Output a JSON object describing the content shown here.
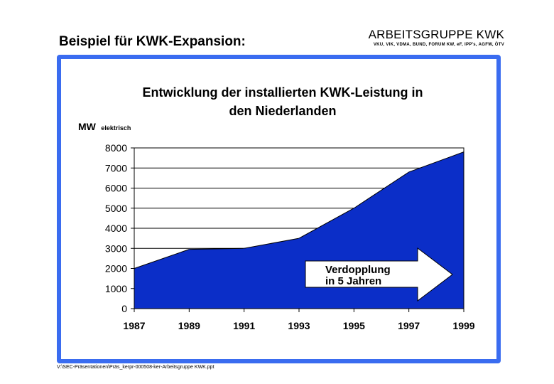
{
  "header": {
    "title": "Beispiel für KWK-Expansion:",
    "org_name": "ARBEITSGRUPPE KWK",
    "org_members": "VKU, VIK, VDMA, BUND, FORUM KW, eF, IPP's, AGFW, ÖTV"
  },
  "footer": {
    "file_path": "V:\\SEC-Präsentationen\\Präs_kerpr-000508-ker-Arbeitsgruppe KWK.ppt"
  },
  "chart_data": {
    "type": "area",
    "title": "Entwicklung der installierten KWK-Leistung in den Niederlanden",
    "title_lines": [
      "Entwicklung der installierten KWK-Leistung in",
      "den Niederlanden"
    ],
    "ylabel_main": "MW",
    "ylabel_sub": "elektrisch",
    "x": [
      1987,
      1989,
      1991,
      1993,
      1995,
      1997,
      1999
    ],
    "x_tick_labels": [
      "1987",
      "1989",
      "1991",
      "1993",
      "1995",
      "1997",
      "1999"
    ],
    "series": [
      {
        "values": [
          2000,
          2950,
          3000,
          3500,
          5000,
          6800,
          7800
        ]
      }
    ],
    "ylim": [
      0,
      8000
    ],
    "y_ticks": [
      0,
      1000,
      2000,
      3000,
      4000,
      5000,
      6000,
      7000,
      8000
    ],
    "y_tick_labels": [
      "0",
      "1000",
      "2000",
      "3000",
      "4000",
      "5000",
      "6000",
      "7000",
      "8000"
    ],
    "grid": "horizontal",
    "fill_color": "#0b2ec8",
    "annotation": {
      "lines": [
        "Verdopplung",
        "in 5 Jahren"
      ],
      "shape": "arrow-right",
      "fill": "#ffffff"
    }
  }
}
